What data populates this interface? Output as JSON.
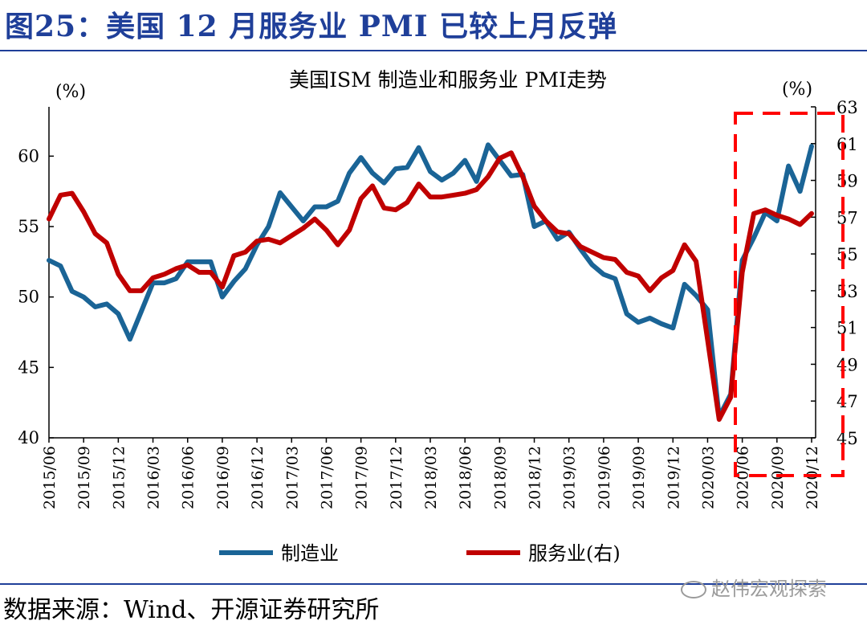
{
  "header": {
    "figure_title": "图25：美国 12 月服务业 PMI 已较上月反弹"
  },
  "footer": {
    "source": "数据来源：Wind、开源证券研究所",
    "watermark": "赵伟宏观探索"
  },
  "colors": {
    "manufacturing": "#1a6496",
    "services": "#c00000",
    "title": "#1f3f99",
    "highlight": "#ff0000"
  },
  "chart_data": {
    "type": "line",
    "title": "美国ISM 制造业和服务业 PMI走势",
    "left_unit": "(%)",
    "right_unit": "(%)",
    "left_axis": {
      "min": 40,
      "max": 63.5,
      "ticks": [
        40,
        45,
        50,
        55,
        60
      ]
    },
    "right_axis": {
      "min": 45,
      "max": 63,
      "ticks": [
        45,
        47,
        49,
        51,
        53,
        55,
        57,
        59,
        61,
        63
      ]
    },
    "x_tick_labels": [
      "2015/06",
      "2015/09",
      "2015/12",
      "2016/03",
      "2016/06",
      "2016/09",
      "2016/12",
      "2017/03",
      "2017/06",
      "2017/09",
      "2017/12",
      "2018/03",
      "2018/06",
      "2018/09",
      "2018/12",
      "2019/03",
      "2019/06",
      "2019/09",
      "2019/12",
      "2020/03",
      "2020/06",
      "2020/09",
      "2020/12"
    ],
    "x_start": "2015/06",
    "x_end": "2020/12",
    "series": [
      {
        "name": "制造业",
        "axis": "left",
        "values": [
          52.6,
          52.2,
          50.4,
          50.0,
          49.3,
          49.5,
          48.8,
          47.0,
          49.0,
          51.0,
          51.0,
          51.3,
          52.5,
          52.5,
          52.5,
          50.0,
          51.1,
          52.0,
          53.7,
          55.0,
          57.4,
          56.4,
          55.4,
          56.4,
          56.4,
          56.8,
          58.8,
          59.9,
          58.8,
          58.1,
          59.1,
          59.2,
          60.6,
          58.9,
          58.3,
          58.8,
          59.7,
          58.2,
          60.8,
          59.7,
          58.6,
          58.7,
          55.0,
          55.4,
          54.1,
          54.6,
          53.4,
          52.3,
          51.6,
          51.3,
          48.8,
          48.2,
          48.5,
          48.1,
          47.8,
          50.9,
          50.1,
          49.1,
          41.5,
          43.1,
          52.6,
          54.2,
          56.0,
          55.4,
          59.3,
          57.5,
          60.7
        ]
      },
      {
        "name": "服务业(右)",
        "axis": "right",
        "values": [
          56.9,
          58.2,
          58.3,
          57.3,
          56.1,
          55.6,
          53.9,
          53.0,
          53.0,
          53.7,
          53.9,
          54.2,
          54.4,
          54.0,
          54.0,
          53.2,
          54.9,
          55.1,
          55.7,
          55.8,
          55.6,
          56.0,
          56.4,
          56.9,
          56.3,
          55.5,
          56.3,
          58.0,
          58.7,
          57.5,
          57.4,
          57.8,
          58.8,
          58.1,
          58.1,
          58.2,
          58.3,
          58.5,
          59.2,
          60.2,
          60.5,
          59.2,
          57.6,
          56.8,
          56.2,
          56.1,
          55.4,
          55.1,
          54.8,
          54.7,
          54.0,
          53.8,
          53.0,
          53.7,
          54.1,
          55.5,
          54.6,
          50.3,
          46.0,
          47.2,
          54.0,
          57.2,
          57.4,
          57.1,
          56.9,
          56.6,
          57.2
        ]
      }
    ],
    "legend": [
      "制造业",
      "服务业(右)"
    ]
  }
}
